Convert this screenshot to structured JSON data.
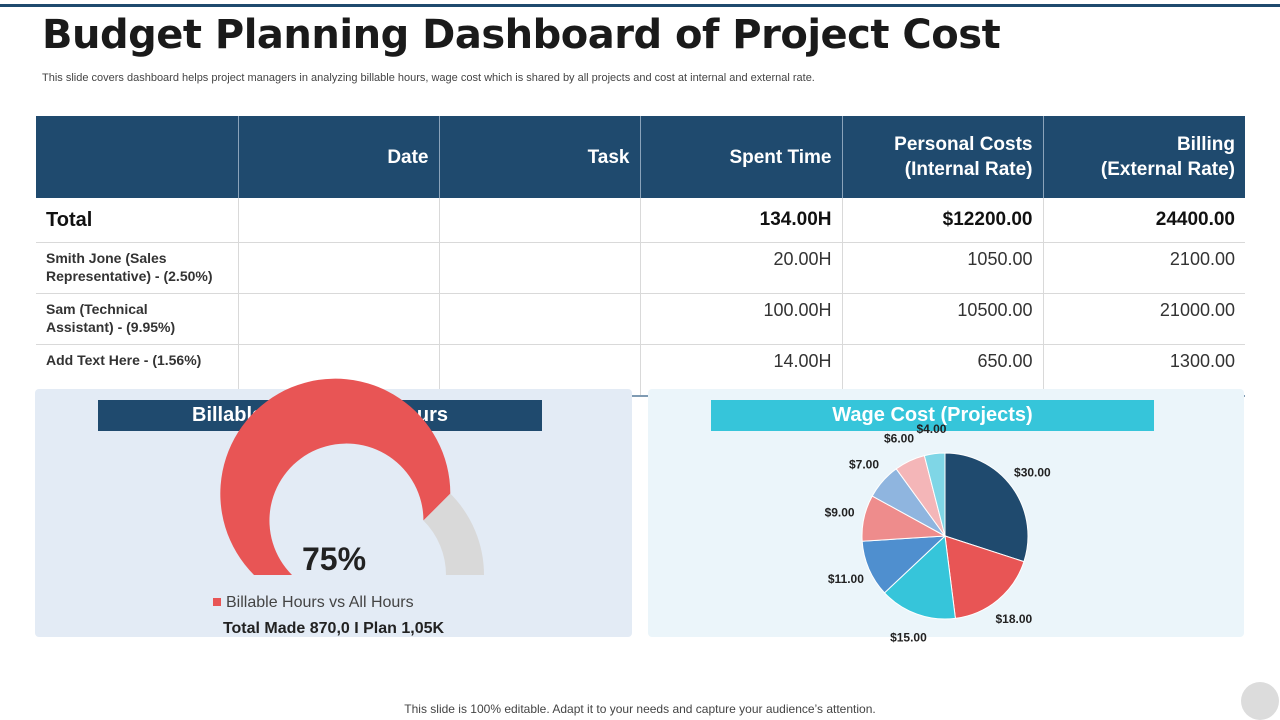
{
  "header": {
    "title": "Budget Planning Dashboard of Project Cost",
    "subtitle": "This slide covers dashboard helps project managers in analyzing billable hours, wage cost which is shared by all projects and cost at internal and external rate."
  },
  "table": {
    "columns": [
      "",
      "Date",
      "Task",
      "Spent Time",
      "Personal Costs (Internal Rate)",
      "Billing (External Rate)"
    ],
    "column_lines": [
      [
        ""
      ],
      [
        "Date"
      ],
      [
        "Task"
      ],
      [
        "Spent Time"
      ],
      [
        "Personal Costs",
        "(Internal Rate)"
      ],
      [
        "Billing",
        "(External Rate)"
      ]
    ],
    "total": {
      "label": "Total",
      "date": "",
      "task": "",
      "spent": "134.00H",
      "internal": "$12200.00",
      "external": "24400.00"
    },
    "rows": [
      {
        "name": "Smith Jone (Sales Representative) - (2.50%)",
        "name_lines": [
          "Smith Jone (Sales",
          "Representative) - (2.50%)"
        ],
        "date": "",
        "task": "",
        "spent": "20.00H",
        "internal": "1050.00",
        "external": "2100.00"
      },
      {
        "name": "Sam (Technical Assistant) - (9.95%)",
        "name_lines": [
          "Sam (Technical",
          "Assistant)  - (9.95%)"
        ],
        "date": "",
        "task": "",
        "spent": "100.00H",
        "internal": "10500.00",
        "external": "21000.00"
      },
      {
        "name": "Add Text Here - (1.56%)",
        "name_lines": [
          "Add  Text Here - (1.56%)"
        ],
        "date": "",
        "task": "",
        "spent": "14.00H",
        "internal": "650.00",
        "external": "1300.00"
      }
    ]
  },
  "gauge_panel": {
    "title": "Billable Hours vs All Hours",
    "value_label": "75%",
    "legend_label": "Billable Hours vs All Hours",
    "total_text": "Total Made 870,0 I Plan 1,05K"
  },
  "pie_panel": {
    "title": "Wage Cost (Projects)"
  },
  "footer": {
    "text": "This slide is 100% editable. Adapt it to your needs and capture your audience’s attention."
  },
  "colors": {
    "navy": "#1f4a6e",
    "red": "#e85555",
    "cyan": "#36c5da",
    "blue": "#4f8fcf",
    "salmon": "#ee8c8c",
    "light_blue": "#8fb5df",
    "pink": "#f4b6b8",
    "light_cyan": "#7fd6e6",
    "gray": "#d9d9d9"
  },
  "chart_data": [
    {
      "type": "gauge",
      "title": "Billable Hours vs All Hours",
      "value": 75,
      "max": 100,
      "label": "75%",
      "series": [
        {
          "name": "Billable Hours vs All Hours",
          "values": [
            75
          ]
        }
      ]
    },
    {
      "type": "pie",
      "title": "Wage Cost (Projects)",
      "start_angle": "top",
      "direction": "clockwise",
      "categories": [
        "$30.00",
        "$18.00",
        "$15.00",
        "$11.00",
        "$9.00",
        "$7.00",
        "$6.00",
        "$4.00"
      ],
      "values": [
        30,
        18,
        15,
        11,
        9,
        7,
        6,
        4
      ],
      "colors": [
        "#1f4a6e",
        "#e85555",
        "#36c5da",
        "#4f8fcf",
        "#ee8c8c",
        "#8fb5df",
        "#f4b6b8",
        "#7fd6e6"
      ]
    }
  ]
}
